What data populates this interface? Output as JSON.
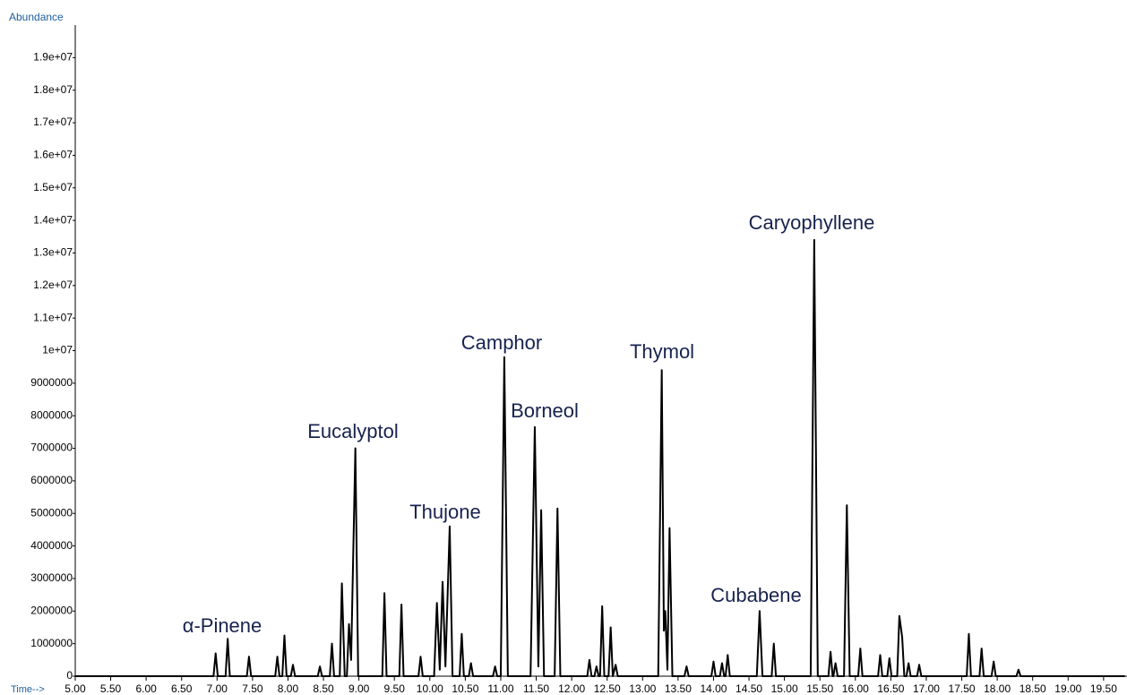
{
  "chart_data": {
    "type": "line",
    "y_label": "Abundance",
    "x_label": "Time-->",
    "xlim": [
      4.95,
      19.83
    ],
    "ylim": [
      0,
      20000000
    ],
    "xticks": [
      {
        "value": 5,
        "label": "5.00"
      },
      {
        "value": 5.5,
        "label": "5.50"
      },
      {
        "value": 6,
        "label": "6.00"
      },
      {
        "value": 6.5,
        "label": "6.50"
      },
      {
        "value": 7,
        "label": "7.00"
      },
      {
        "value": 7.5,
        "label": "7.50"
      },
      {
        "value": 8,
        "label": "8.00"
      },
      {
        "value": 8.5,
        "label": "8.50"
      },
      {
        "value": 9,
        "label": "9.00"
      },
      {
        "value": 9.5,
        "label": "9.50"
      },
      {
        "value": 10,
        "label": "10.00"
      },
      {
        "value": 10.5,
        "label": "10.50"
      },
      {
        "value": 11,
        "label": "11.00"
      },
      {
        "value": 11.5,
        "label": "11.50"
      },
      {
        "value": 12,
        "label": "12.00"
      },
      {
        "value": 12.5,
        "label": "12.50"
      },
      {
        "value": 13,
        "label": "13.00"
      },
      {
        "value": 13.5,
        "label": "13.50"
      },
      {
        "value": 14,
        "label": "14.00"
      },
      {
        "value": 14.5,
        "label": "14.50"
      },
      {
        "value": 15,
        "label": "15.00"
      },
      {
        "value": 15.5,
        "label": "15.50"
      },
      {
        "value": 16,
        "label": "16.00"
      },
      {
        "value": 16.5,
        "label": "16.50"
      },
      {
        "value": 17,
        "label": "17.00"
      },
      {
        "value": 17.5,
        "label": "17.50"
      },
      {
        "value": 18,
        "label": "18.00"
      },
      {
        "value": 18.5,
        "label": "18.50"
      },
      {
        "value": 19,
        "label": "19.00"
      },
      {
        "value": 19.5,
        "label": "19.50"
      }
    ],
    "yticks": [
      0,
      1000000,
      2000000,
      3000000,
      4000000,
      5000000,
      6000000,
      7000000,
      8000000,
      9000000,
      {
        "value": 10000000,
        "label": "1e+07"
      },
      {
        "value": 11000000,
        "label": "1.1e+07"
      },
      {
        "value": 12000000,
        "label": "1.2e+07"
      },
      {
        "value": 13000000,
        "label": "1.3e+07"
      },
      {
        "value": 14000000,
        "label": "1.4e+07"
      },
      {
        "value": 15000000,
        "label": "1.5e+07"
      },
      {
        "value": 16000000,
        "label": "1.6e+07"
      },
      {
        "value": 17000000,
        "label": "1.7e+07"
      },
      {
        "value": 18000000,
        "label": "1.8e+07"
      },
      {
        "value": 19000000,
        "label": "1.9e+07"
      }
    ],
    "annotations": [
      "α-Pinene",
      "Eucalyptol",
      "Thujone",
      "Camphor",
      "Borneol",
      "Thymol",
      "Cubabene",
      "Caryophyllene"
    ],
    "x": [
      5.0,
      6.95,
      6.98,
      7.01,
      7.12,
      7.15,
      7.18,
      7.42,
      7.45,
      7.48,
      7.82,
      7.85,
      7.88,
      7.92,
      7.95,
      7.98,
      8.04,
      8.07,
      8.1,
      8.42,
      8.45,
      8.48,
      8.59,
      8.62,
      8.65,
      8.73,
      8.76,
      8.8,
      8.83,
      8.86,
      8.89,
      8.95,
      8.99,
      9.33,
      9.36,
      9.39,
      9.57,
      9.6,
      9.63,
      9.84,
      9.87,
      9.9,
      10.06,
      10.1,
      10.14,
      10.18,
      10.22,
      10.28,
      10.32,
      10.42,
      10.45,
      10.48,
      10.55,
      10.58,
      10.61,
      10.89,
      10.92,
      10.95,
      11.0,
      11.05,
      11.1,
      11.42,
      11.48,
      11.53,
      11.57,
      11.61,
      11.76,
      11.8,
      11.84,
      12.22,
      12.25,
      12.28,
      12.32,
      12.35,
      12.38,
      12.4,
      12.43,
      12.46,
      12.52,
      12.55,
      12.58,
      12.62,
      12.65,
      13.22,
      13.27,
      13.3,
      13.32,
      13.35,
      13.38,
      13.42,
      13.59,
      13.62,
      13.65,
      13.97,
      14.0,
      14.03,
      14.09,
      14.12,
      14.15,
      14.17,
      14.2,
      14.23,
      14.61,
      14.65,
      14.69,
      14.82,
      14.85,
      14.88,
      15.37,
      15.42,
      15.47,
      15.62,
      15.65,
      15.68,
      15.69,
      15.72,
      15.75,
      15.84,
      15.88,
      15.92,
      16.04,
      16.07,
      16.1,
      16.32,
      16.35,
      16.38,
      16.45,
      16.48,
      16.51,
      16.59,
      16.62,
      16.66,
      16.69,
      16.72,
      16.75,
      16.78,
      16.87,
      16.9,
      16.93,
      17.57,
      17.6,
      17.63,
      17.75,
      17.78,
      17.81,
      17.92,
      17.95,
      17.98,
      18.27,
      18.3,
      18.33,
      19.8
    ],
    "series": [
      {
        "color": "#000000",
        "values": [
          0,
          0,
          700000,
          0,
          0,
          1150000,
          0,
          0,
          600000,
          0,
          0,
          600000,
          0,
          0,
          1250000,
          0,
          0,
          350000,
          0,
          0,
          300000,
          0,
          0,
          1000000,
          0,
          0,
          2850000,
          0,
          0,
          1600000,
          500000,
          7000000,
          0,
          0,
          2550000,
          0,
          0,
          2200000,
          0,
          0,
          600000,
          0,
          0,
          2250000,
          200000,
          2900000,
          300000,
          4600000,
          0,
          0,
          1300000,
          0,
          0,
          400000,
          0,
          0,
          300000,
          0,
          0,
          9800000,
          0,
          0,
          7650000,
          300000,
          5100000,
          0,
          0,
          5150000,
          0,
          0,
          500000,
          0,
          0,
          300000,
          0,
          0,
          2150000,
          0,
          0,
          1500000,
          0,
          350000,
          0,
          0,
          9400000,
          1400000,
          2000000,
          200000,
          4550000,
          0,
          0,
          300000,
          0,
          0,
          450000,
          0,
          0,
          400000,
          0,
          0,
          650000,
          0,
          0,
          2000000,
          0,
          0,
          1000000,
          0,
          0,
          13400000,
          0,
          0,
          750000,
          0,
          0,
          400000,
          0,
          0,
          5250000,
          0,
          0,
          850000,
          0,
          0,
          650000,
          0,
          0,
          550000,
          0,
          0,
          1850000,
          1200000,
          0,
          0,
          400000,
          0,
          0,
          350000,
          0,
          0,
          1300000,
          0,
          0,
          850000,
          0,
          0,
          450000,
          0,
          0,
          200000,
          0,
          0
        ]
      }
    ]
  }
}
